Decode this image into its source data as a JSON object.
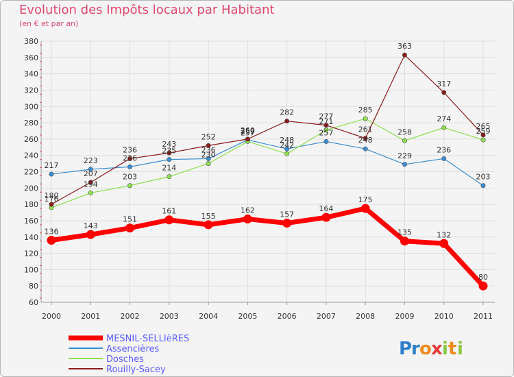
{
  "chart_data": {
    "type": "line",
    "title": "Evolution des Impôts locaux par Habitant",
    "subtitle": "(en € et par an)",
    "xlabel": "",
    "ylabel": "",
    "ylim": [
      60,
      380
    ],
    "ytick_step": 20,
    "categories": [
      "2000",
      "2001",
      "2002",
      "2003",
      "2004",
      "2005",
      "2006",
      "2007",
      "2008",
      "2009",
      "2010",
      "2011"
    ],
    "legend_position": "bottom-left",
    "series": [
      {
        "name": "MESNIL-SELLIèRES",
        "color": "#ff0000",
        "emphasis": true,
        "values": [
          136,
          143,
          151,
          161,
          155,
          162,
          157,
          164,
          175,
          135,
          132,
          80
        ]
      },
      {
        "name": "Assencières",
        "color": "#3a8dd1",
        "emphasis": false,
        "values": [
          217,
          223,
          226,
          235,
          236,
          259,
          248,
          257,
          248,
          229,
          236,
          203
        ]
      },
      {
        "name": "Dosches",
        "color": "#8ee04f",
        "emphasis": false,
        "values": [
          176,
          194,
          203,
          214,
          230,
          257,
          242,
          271,
          285,
          258,
          274,
          259
        ]
      },
      {
        "name": "Rouilly-Sacey",
        "color": "#8b1a1a",
        "emphasis": false,
        "values": [
          180,
          207,
          236,
          243,
          252,
          260,
          282,
          277,
          261,
          363,
          317,
          265
        ]
      }
    ]
  },
  "logo": {
    "text": "Proxiti"
  }
}
